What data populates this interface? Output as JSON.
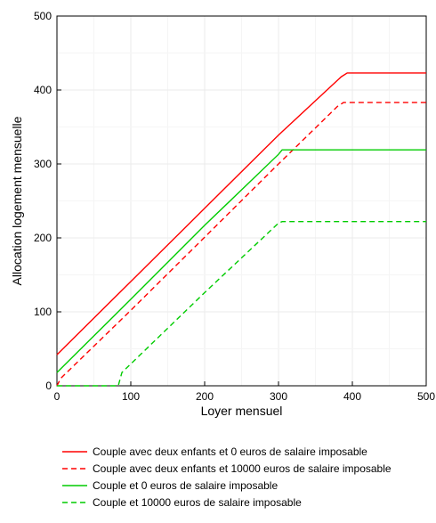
{
  "chart_data": {
    "type": "line",
    "title": "",
    "xlabel": "Loyer mensuel",
    "ylabel": "Allocation logement mensuelle",
    "xlim": [
      0,
      500
    ],
    "ylim": [
      0,
      500
    ],
    "x_ticks": [
      0,
      100,
      200,
      300,
      400,
      500
    ],
    "y_ticks": [
      0,
      100,
      200,
      300,
      400,
      500
    ],
    "grid": true,
    "legend_position": "bottom",
    "series": [
      {
        "name": "Couple avec deux enfants et 0 euros de salaire imposable",
        "color": "#ff0000",
        "dash": "solid",
        "x": [
          0,
          100,
          200,
          300,
          385,
          393,
          500
        ],
        "y": [
          42,
          141,
          240,
          339,
          418,
          423,
          423
        ]
      },
      {
        "name": "Couple avec deux enfants et 10000 euros de salaire imposable",
        "color": "#ff0000",
        "dash": "dashed",
        "x": [
          0,
          5,
          100,
          200,
          300,
          380,
          388,
          500
        ],
        "y": [
          0,
          10,
          102,
          201,
          300,
          378,
          383,
          383
        ]
      },
      {
        "name": "Couple et 0 euros de salaire imposable",
        "color": "#00cc00",
        "dash": "solid",
        "x": [
          0,
          100,
          200,
          300,
          305,
          500
        ],
        "y": [
          18,
          117,
          217,
          313,
          319,
          319
        ]
      },
      {
        "name": "Couple et 10000 euros de salaire imposable",
        "color": "#00cc00",
        "dash": "dashed",
        "x": [
          0,
          83,
          88,
          200,
          300,
          305,
          500
        ],
        "y": [
          0,
          0,
          18,
          126,
          220,
          222,
          222
        ]
      }
    ]
  }
}
